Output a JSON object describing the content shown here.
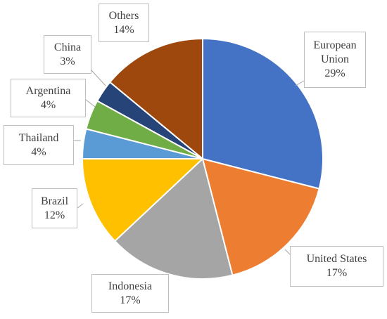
{
  "chart_data": {
    "type": "pie",
    "categories": [
      "European Union",
      "United States",
      "Indonesia",
      "Brazil",
      "Thailand",
      "Argentina",
      "China",
      "Others"
    ],
    "values": [
      29,
      17,
      17,
      12,
      4,
      4,
      3,
      14
    ],
    "value_labels": [
      "29%",
      "17%",
      "17%",
      "12%",
      "4%",
      "4%",
      "3%",
      "14%"
    ],
    "colors": [
      "#4472c4",
      "#ed7d31",
      "#a5a5a5",
      "#ffc000",
      "#5b9bd5",
      "#70ad47",
      "#264478",
      "#9e480e"
    ]
  }
}
